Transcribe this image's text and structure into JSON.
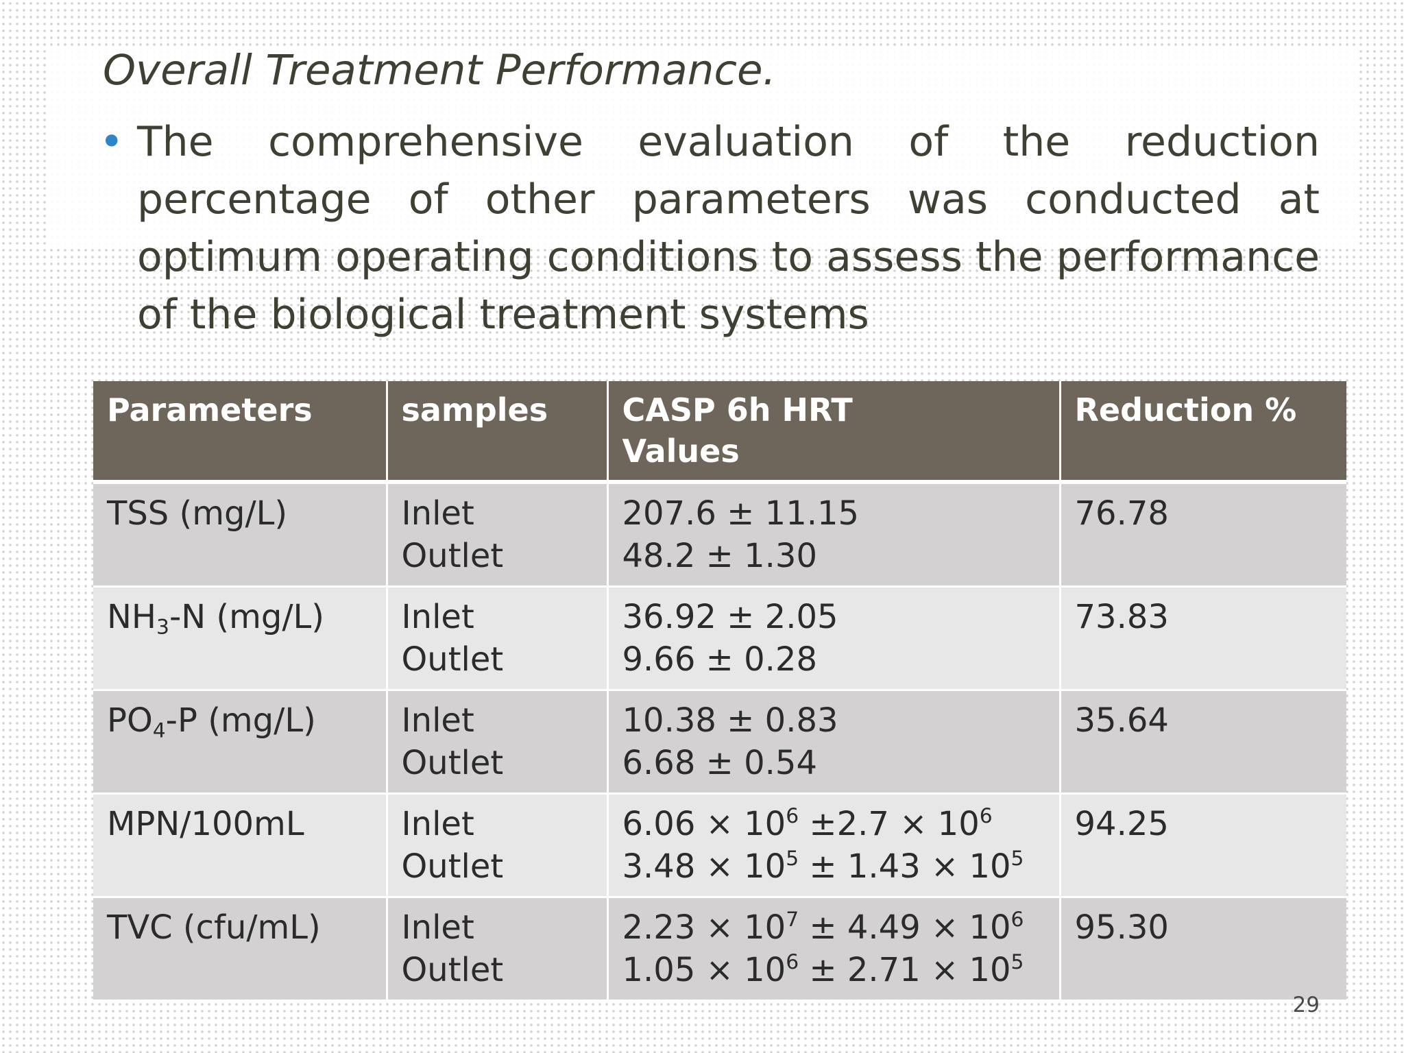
{
  "slide": {
    "title": "Overall Treatment Performance.",
    "bullet": "The comprehensive evaluation of the reduction percentage of other parameters was conducted at optimum operating conditions to assess the performance of the biological treatment systems",
    "page_number": "29",
    "accent_color": "#2e86c9"
  },
  "table": {
    "header": {
      "parameters": "Parameters",
      "samples": "samples",
      "values_line1": "CASP 6h HRT",
      "values_line2": "Values",
      "reduction": "Reduction %"
    },
    "header_color": "#6e665b",
    "rows": [
      {
        "param": "TSS (mg/L)",
        "inlet": "Inlet",
        "outlet": "Outlet",
        "inlet_value": "207.6 ± 11.15",
        "outlet_value": "48.2 ± 1.30",
        "reduction": "76.78"
      },
      {
        "param_pre": "NH",
        "param_sub": "3",
        "param_post": "-N (mg/L)",
        "inlet": "Inlet",
        "outlet": "Outlet",
        "inlet_value": "36.92 ± 2.05",
        "outlet_value": "9.66 ± 0.28",
        "reduction": "73.83"
      },
      {
        "param_pre": "PO",
        "param_sub": "4",
        "param_post": "-P (mg/L)",
        "inlet": "Inlet",
        "outlet": "Outlet",
        "inlet_value": "10.38 ± 0.83",
        "outlet_value": "6.68 ± 0.54",
        "reduction": "35.64"
      },
      {
        "param": "MPN/100mL",
        "inlet": "Inlet",
        "outlet": "Outlet",
        "inlet_value": {
          "a": "6.06 × 10",
          "a_exp": "6",
          "b": " ±2.7 × 10",
          "b_exp": "6"
        },
        "outlet_value": {
          "a": "3.48 × 10",
          "a_exp": "5",
          "b": " ± 1.43 × 10",
          "b_exp": "5"
        },
        "reduction": "94.25"
      },
      {
        "param": "TVC (cfu/mL)",
        "inlet": "Inlet",
        "outlet": "Outlet",
        "inlet_value": {
          "a": "2.23 × 10",
          "a_exp": "7",
          "b": " ± 4.49 × 10",
          "b_exp": "6"
        },
        "outlet_value": {
          "a": "1.05 × 10",
          "a_exp": "6",
          "b": " ± 2.71 × 10",
          "b_exp": "5"
        },
        "reduction": "95.30"
      }
    ]
  }
}
